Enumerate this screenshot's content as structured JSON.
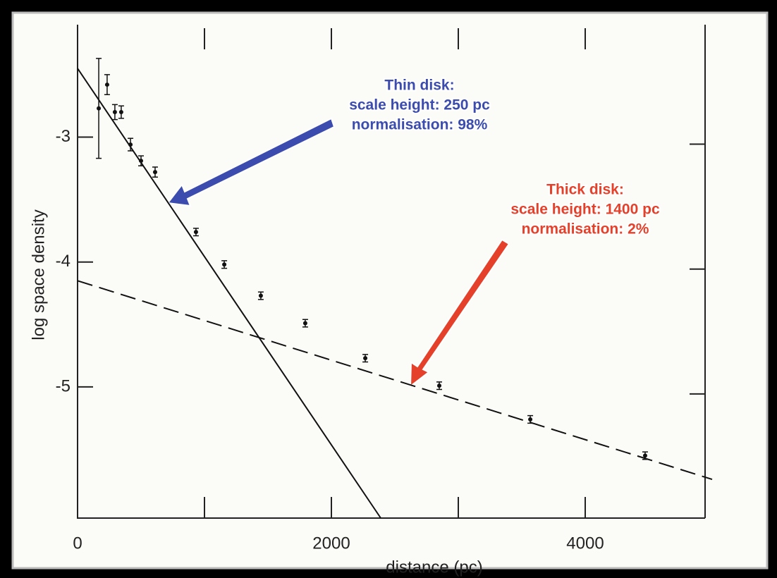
{
  "chart_data": {
    "type": "scatter",
    "xlabel": "distance (pc)",
    "ylabel": "log space density",
    "xlim": [
      0,
      5000
    ],
    "ylim": [
      -6.05,
      -2.1
    ],
    "xticks": [
      0,
      2000,
      4000
    ],
    "xminorticks": [
      1000,
      3000
    ],
    "yticks": [
      -3,
      -4,
      -5
    ],
    "points": {
      "x": [
        167,
        233,
        294,
        344,
        417,
        500,
        611,
        933,
        1156,
        1444,
        1794,
        2267,
        2850,
        3567,
        4472
      ],
      "values": [
        -2.77,
        -2.58,
        -2.8,
        -2.8,
        -3.06,
        -3.19,
        -3.28,
        -3.76,
        -4.02,
        -4.27,
        -4.49,
        -4.77,
        -4.99,
        -5.26,
        -5.55
      ],
      "errors": [
        0.4,
        0.08,
        0.06,
        0.05,
        0.05,
        0.04,
        0.04,
        0.03,
        0.03,
        0.03,
        0.03,
        0.03,
        0.03,
        0.03,
        0.03
      ],
      "color": "#111111"
    },
    "lines": [
      {
        "x": [
          0,
          2389
        ],
        "values": [
          -2.45,
          -6.05
        ],
        "style": "solid",
        "color": "#111111"
      },
      {
        "x": [
          0,
          5000
        ],
        "values": [
          -4.15,
          -5.74
        ],
        "style": "dashed",
        "color": "#111111"
      }
    ],
    "annotations": [
      {
        "lines": [
          "Thin disk:",
          "scale height: 250 pc",
          "normalisation: 98%"
        ],
        "color": "#3b4cae"
      },
      {
        "lines": [
          "Thick disk:",
          "scale height: 1400 pc",
          "normalisation: 2%"
        ],
        "color": "#e5402a"
      }
    ]
  }
}
